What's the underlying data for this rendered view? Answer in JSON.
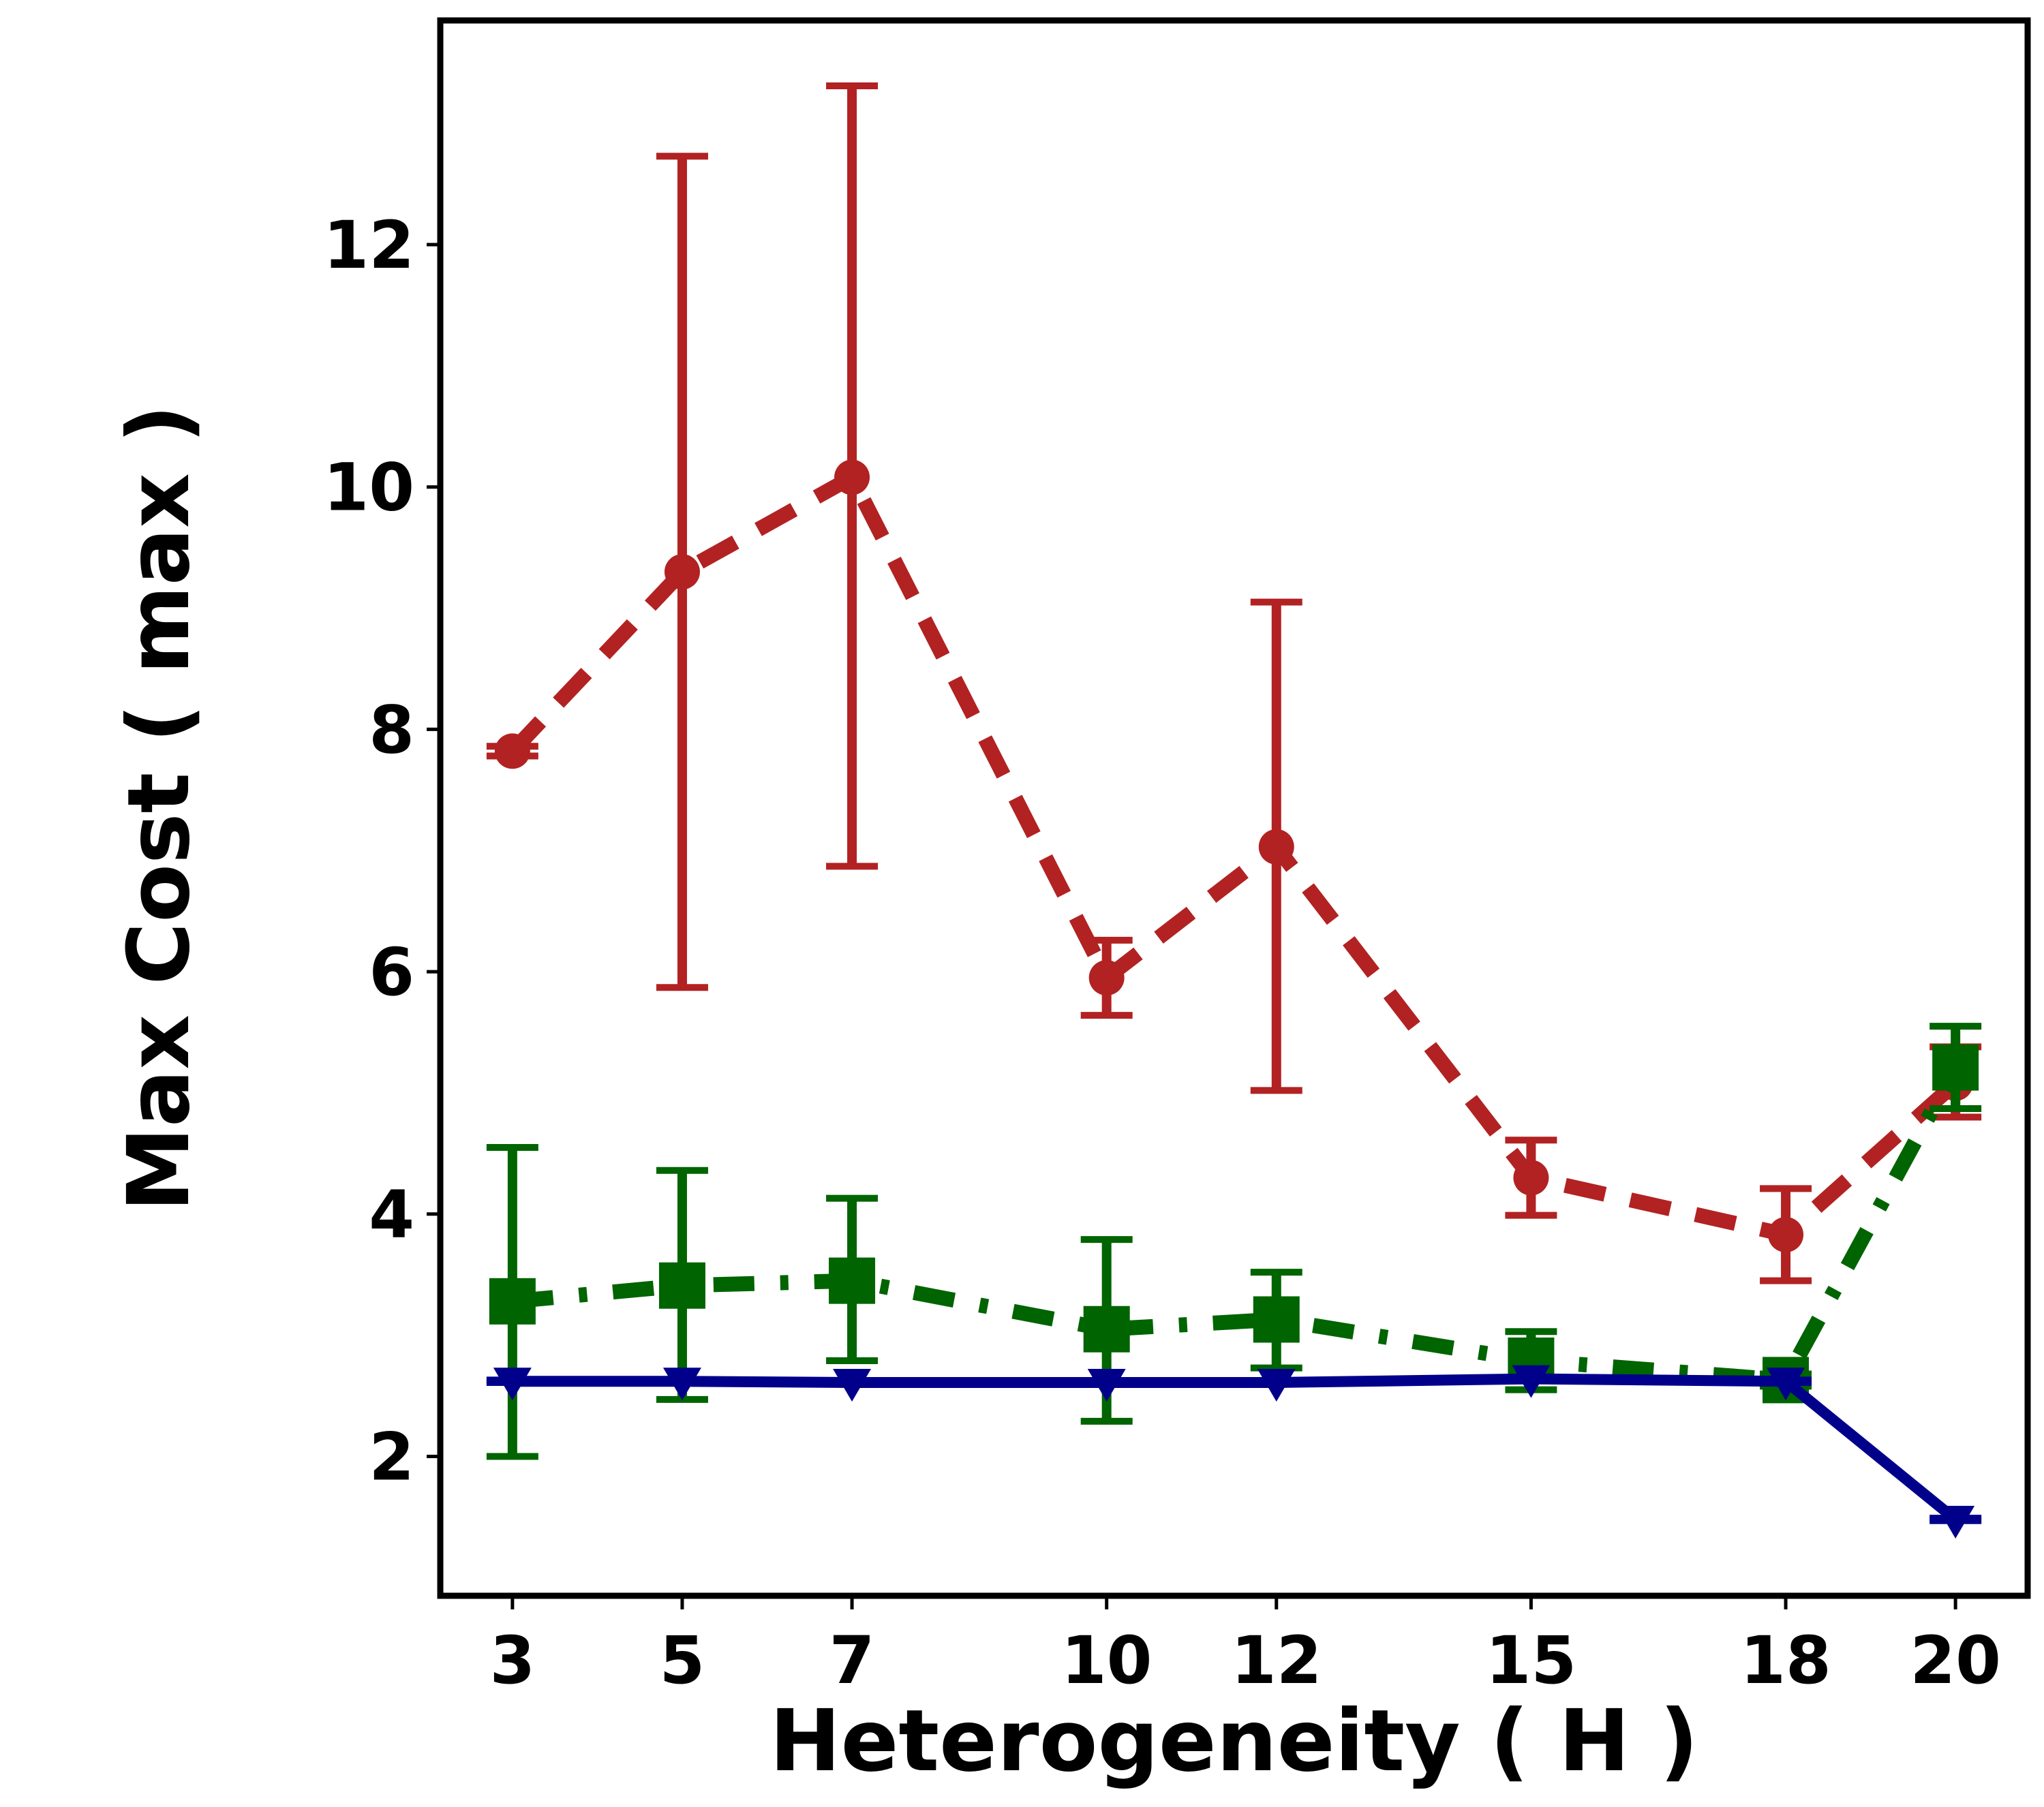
{
  "chart_data": {
    "type": "line",
    "xlabel": "Heterogeneity ( H )",
    "ylabel": "Max Cost ( max  )",
    "x": [
      3,
      5,
      7,
      10,
      12,
      15,
      18,
      20
    ],
    "x_tick_labels": [
      "3",
      "5",
      "7",
      "10",
      "12",
      "15",
      "18",
      "20"
    ],
    "xlim": [
      2.15,
      20.85
    ],
    "ylim": [
      0.85,
      13.85
    ],
    "y_ticks": [
      2,
      4,
      6,
      8,
      10,
      12
    ],
    "y_tick_labels": [
      "2",
      "4",
      "6",
      "8",
      "10",
      "12"
    ],
    "grid": false,
    "legend": "none",
    "series": [
      {
        "name": "red",
        "color": "#b22222",
        "linestyle": "dashed",
        "marker": "circle",
        "values": [
          7.82,
          9.3,
          10.08,
          5.95,
          7.03,
          4.3,
          3.83,
          5.08
        ],
        "err_low": [
          7.78,
          5.87,
          6.87,
          5.64,
          5.02,
          3.99,
          3.45,
          4.8
        ],
        "err_high": [
          7.86,
          12.73,
          13.31,
          6.26,
          9.05,
          4.61,
          4.21,
          5.38
        ]
      },
      {
        "name": "green",
        "color": "#006400",
        "linestyle": "dashdot",
        "marker": "square",
        "values": [
          3.28,
          3.41,
          3.45,
          3.05,
          3.13,
          2.79,
          2.63,
          5.21
        ],
        "err_low": [
          2.0,
          2.47,
          2.79,
          2.29,
          2.73,
          2.55,
          2.58,
          4.87
        ],
        "err_high": [
          4.55,
          4.36,
          4.13,
          3.79,
          3.52,
          3.03,
          2.68,
          5.55
        ]
      },
      {
        "name": "blue",
        "color": "#00008b",
        "linestyle": "solid",
        "marker": "triangle-down",
        "values": [
          2.62,
          2.62,
          2.61,
          2.61,
          2.61,
          2.64,
          2.62,
          1.48
        ],
        "err_low": [
          2.61,
          2.61,
          2.6,
          2.6,
          2.6,
          2.63,
          2.61,
          1.47
        ],
        "err_high": [
          2.63,
          2.63,
          2.62,
          2.62,
          2.62,
          2.65,
          2.63,
          1.49
        ]
      }
    ]
  }
}
